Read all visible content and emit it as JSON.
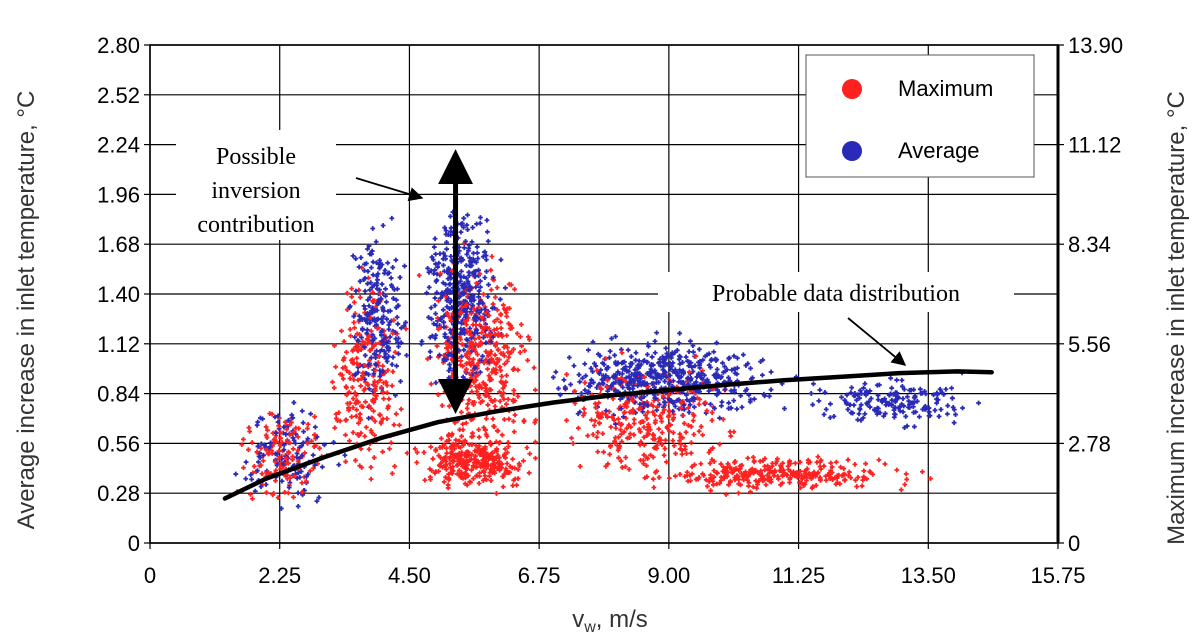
{
  "chart_data": {
    "type": "scatter",
    "title": "",
    "xlabel_main": "v",
    "xlabel_sub": "w",
    "xlabel_rest": ", m/s",
    "ylabel": "Average increase in inlet temperature, °C",
    "y2label": "Maximum increase in inlet temperature, °C",
    "xlim": [
      0,
      15.75
    ],
    "ylim": [
      0,
      2.8
    ],
    "y2lim": [
      0,
      13.9
    ],
    "grid": true,
    "legend_position": "top-right",
    "x_ticks": [
      "0",
      "2.25",
      "4.50",
      "6.75",
      "9.00",
      "11.25",
      "13.50",
      "15.75"
    ],
    "y_ticks": [
      "0",
      "0.28",
      "0.56",
      "0.84",
      "1.12",
      "1.40",
      "1.68",
      "1.96",
      "2.24",
      "2.52",
      "2.80"
    ],
    "y2_ticks": [
      "0",
      "2.78",
      "5.56",
      "8.34",
      "11.12",
      "13.90"
    ],
    "legend": [
      {
        "name": "Maximum",
        "color": "#ff2020"
      },
      {
        "name": "Average",
        "color": "#2a2ab8"
      }
    ],
    "series": [
      {
        "name": "Maximum",
        "color": "#ff2020",
        "clusters": [
          {
            "x_range": [
              1.3,
              3.2
            ],
            "y_range": [
              0.1,
              1.1
            ],
            "count": 140
          },
          {
            "x_range": [
              3.0,
              4.5
            ],
            "y_range": [
              0.08,
              2.2
            ],
            "count": 230
          },
          {
            "x_range": [
              4.5,
              6.9
            ],
            "y_range": [
              0.22,
              2.25
            ],
            "count": 420
          },
          {
            "x_range": [
              4.4,
              6.9
            ],
            "y_range": [
              0.25,
              0.75
            ],
            "count": 280
          },
          {
            "x_range": [
              6.75,
              10.5
            ],
            "y_range": [
              0.25,
              1.4
            ],
            "count": 290
          },
          {
            "x_range": [
              8.0,
              13.8
            ],
            "y_range": [
              0.25,
              0.6
            ],
            "count": 300
          }
        ]
      },
      {
        "name": "Average",
        "color": "#2a2ab8",
        "clusters": [
          {
            "x_range": [
              1.3,
              3.5
            ],
            "y_range": [
              0.08,
              1.12
            ],
            "count": 120
          },
          {
            "x_range": [
              3.3,
              4.6
            ],
            "y_range": [
              0.55,
              2.35
            ],
            "count": 220
          },
          {
            "x_range": [
              4.5,
              6.3
            ],
            "y_range": [
              0.7,
              2.4
            ],
            "count": 380
          },
          {
            "x_range": [
              6.5,
              11.5
            ],
            "y_range": [
              0.6,
              1.4
            ],
            "count": 520
          },
          {
            "x_range": [
              11.0,
              14.8
            ],
            "y_range": [
              0.6,
              1.1
            ],
            "count": 170
          }
        ]
      }
    ],
    "trend_curve": {
      "x": [
        1.3,
        2.0,
        3.0,
        4.0,
        5.0,
        6.0,
        7.0,
        8.0,
        9.0,
        10.0,
        11.0,
        12.0,
        13.0,
        14.0,
        14.6
      ],
      "y": [
        0.25,
        0.36,
        0.48,
        0.59,
        0.68,
        0.74,
        0.79,
        0.83,
        0.86,
        0.89,
        0.915,
        0.935,
        0.955,
        0.965,
        0.96
      ]
    },
    "inversion_arrow": {
      "x": 5.3,
      "y_from": 0.72,
      "y_to": 2.22
    },
    "annotations": [
      {
        "lines": [
          "Possible",
          "inversion",
          "contribution"
        ],
        "points_to": {
          "x": 5.0,
          "y": 1.93
        }
      },
      {
        "lines": [
          "Probable data distribution"
        ],
        "points_to": {
          "x": 13.3,
          "y": 0.97
        }
      }
    ]
  }
}
